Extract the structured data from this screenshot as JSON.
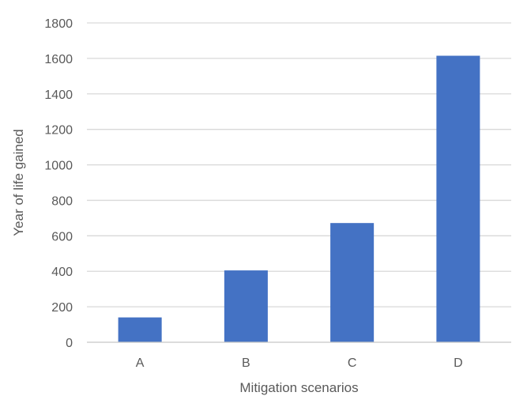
{
  "chart_data": {
    "type": "bar",
    "categories": [
      "A",
      "B",
      "C",
      "D"
    ],
    "values": [
      140,
      405,
      672,
      1615
    ],
    "title": "",
    "xlabel": "Mitigation scenarios",
    "ylabel": "Year of life gained",
    "ylim": [
      0,
      1800
    ],
    "yticks": [
      "0",
      "200",
      "400",
      "600",
      "800",
      "1000",
      "1200",
      "1400",
      "1600",
      "1800"
    ],
    "grid": true,
    "legend": "none",
    "bar_color": "#4472c4"
  }
}
